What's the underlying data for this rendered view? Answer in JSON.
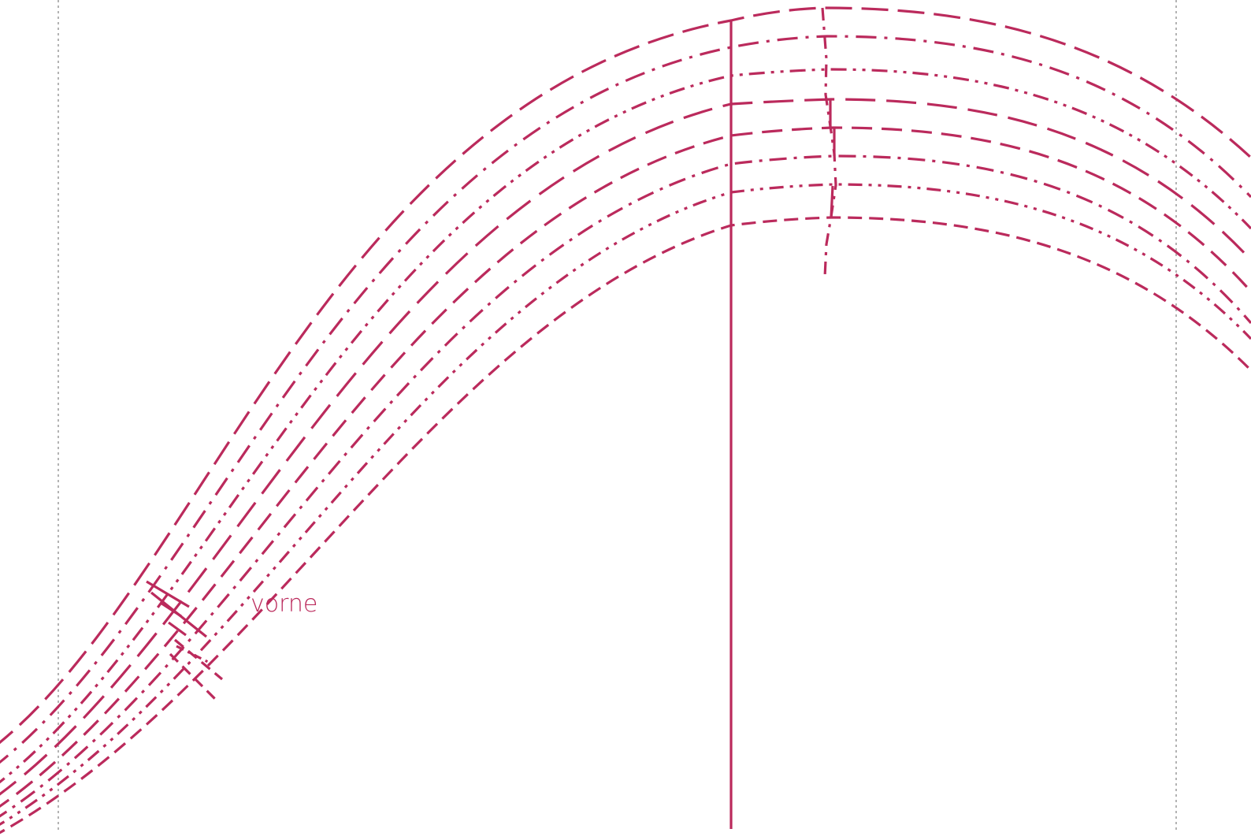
{
  "pattern": {
    "label": "vorne",
    "line_color": "#bb2a5c",
    "guide_color": "#9a9a9a",
    "background_color": "#ffffff",
    "size_lines": [
      {
        "style": "long-dash"
      },
      {
        "style": "dash-dot"
      },
      {
        "style": "dash-dot-dot"
      },
      {
        "style": "long-dash-2"
      },
      {
        "style": "dash"
      },
      {
        "style": "dash-dot-2"
      },
      {
        "style": "dash-dot-dot-2"
      },
      {
        "style": "short-dash"
      }
    ]
  }
}
